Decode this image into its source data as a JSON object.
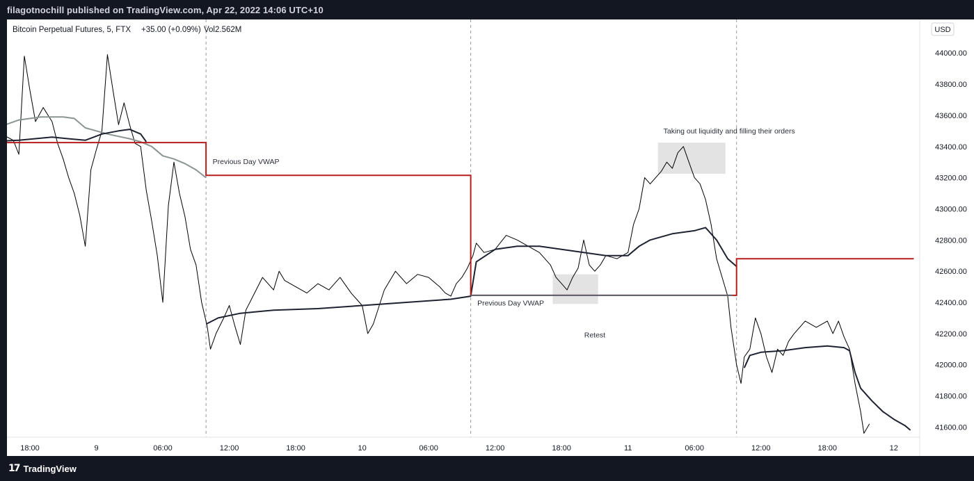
{
  "header": {
    "publish_line": "filagotnochill published on TradingView.com, Apr 22, 2022 14:06 UTC+10"
  },
  "legend": {
    "symbol": "Bitcoin Perpetual Futures, 5, FTX",
    "change": "+35.00 (+0.09%)",
    "volume": "Vol2.562M"
  },
  "currency_button": "USD",
  "footer": {
    "brand": "TradingView",
    "logo_icon": "tradingview-logo-icon"
  },
  "colors": {
    "price": "#000000",
    "vwap_grey": "#8a9593",
    "vwap_dark": "#1e2230",
    "prev_vwap": "#b71c1c",
    "box": "#d9d9d9"
  },
  "chart_data": {
    "type": "line",
    "title": "",
    "xlabel": "",
    "ylabel": "",
    "ylim": [
      41535,
      44215
    ],
    "y_ticks": [
      44000,
      43800,
      43600,
      43400,
      43200,
      43000,
      42800,
      42600,
      42400,
      42200,
      42000,
      41800,
      41600
    ],
    "y_tick_labels": [
      "44000.00",
      "43800.00",
      "43600.00",
      "43400.00",
      "43200.00",
      "43000.00",
      "42800.00",
      "42600.00",
      "42400.00",
      "42200.00",
      "42000.00",
      "41800.00",
      "41600.00"
    ],
    "x_ticks": [
      {
        "hour": 0,
        "label": "18:00"
      },
      {
        "hour": 6,
        "label": "9"
      },
      {
        "hour": 12,
        "label": "06:00"
      },
      {
        "hour": 18,
        "label": "12:00"
      },
      {
        "hour": 24,
        "label": "18:00"
      },
      {
        "hour": 30,
        "label": "10"
      },
      {
        "hour": 36,
        "label": "06:00"
      },
      {
        "hour": 42,
        "label": "12:00"
      },
      {
        "hour": 48,
        "label": "18:00"
      },
      {
        "hour": 54,
        "label": "11"
      },
      {
        "hour": 60,
        "label": "06:00"
      },
      {
        "hour": 66,
        "label": "12:00"
      },
      {
        "hour": 72,
        "label": "18:00"
      },
      {
        "hour": 78,
        "label": "12"
      }
    ],
    "session_breaks": [
      15.9,
      39.8,
      63.8
    ],
    "price_series": {
      "name": "",
      "points": [
        [
          -4.5,
          43420
        ],
        [
          -4,
          43620
        ],
        [
          -3,
          43530
        ],
        [
          -2.3,
          43470
        ],
        [
          -1.5,
          43440
        ],
        [
          -1,
          43350
        ],
        [
          -0.5,
          43980
        ],
        [
          0,
          43760
        ],
        [
          0.5,
          43560
        ],
        [
          1.2,
          43650
        ],
        [
          2,
          43560
        ],
        [
          2.5,
          43420
        ],
        [
          3,
          43320
        ],
        [
          3.5,
          43200
        ],
        [
          4,
          43100
        ],
        [
          4.5,
          42960
        ],
        [
          5,
          42760
        ],
        [
          5.5,
          43250
        ],
        [
          6,
          43380
        ],
        [
          6.5,
          43500
        ],
        [
          7,
          43990
        ],
        [
          7.5,
          43760
        ],
        [
          8,
          43540
        ],
        [
          8.5,
          43680
        ],
        [
          9,
          43540
        ],
        [
          9.5,
          43420
        ],
        [
          10,
          43400
        ],
        [
          10.5,
          43120
        ],
        [
          11,
          42920
        ],
        [
          11.5,
          42700
        ],
        [
          12,
          42400
        ],
        [
          12.5,
          43020
        ],
        [
          13,
          43300
        ],
        [
          13.5,
          43100
        ],
        [
          14,
          42950
        ],
        [
          14.5,
          42740
        ],
        [
          15,
          42640
        ],
        [
          15.5,
          42400
        ],
        [
          16,
          42250
        ],
        [
          16.3,
          42100
        ],
        [
          16.8,
          42200
        ],
        [
          17.5,
          42300
        ],
        [
          18,
          42380
        ],
        [
          18.5,
          42250
        ],
        [
          19,
          42130
        ],
        [
          19.5,
          42350
        ],
        [
          20,
          42420
        ],
        [
          21,
          42560
        ],
        [
          22,
          42480
        ],
        [
          22.5,
          42600
        ],
        [
          23,
          42540
        ],
        [
          24,
          42500
        ],
        [
          25,
          42460
        ],
        [
          26,
          42520
        ],
        [
          27,
          42480
        ],
        [
          28,
          42560
        ],
        [
          29,
          42460
        ],
        [
          29.5,
          42420
        ],
        [
          30,
          42380
        ],
        [
          30.5,
          42200
        ],
        [
          31,
          42260
        ],
        [
          32,
          42480
        ],
        [
          33,
          42600
        ],
        [
          34,
          42520
        ],
        [
          35,
          42580
        ],
        [
          36,
          42560
        ],
        [
          37,
          42500
        ],
        [
          37.5,
          42460
        ],
        [
          38,
          42440
        ],
        [
          38.5,
          42520
        ],
        [
          39,
          42560
        ],
        [
          39.5,
          42620
        ],
        [
          40,
          42700
        ],
        [
          40.3,
          42780
        ],
        [
          41,
          42720
        ],
        [
          42,
          42740
        ],
        [
          43,
          42830
        ],
        [
          44,
          42800
        ],
        [
          45,
          42760
        ],
        [
          46,
          42720
        ],
        [
          47,
          42640
        ],
        [
          47.5,
          42560
        ],
        [
          48,
          42520
        ],
        [
          48.5,
          42480
        ],
        [
          49,
          42560
        ],
        [
          49.5,
          42620
        ],
        [
          50,
          42800
        ],
        [
          50.5,
          42640
        ],
        [
          51,
          42600
        ],
        [
          51.5,
          42640
        ],
        [
          52,
          42700
        ],
        [
          53,
          42680
        ],
        [
          54,
          42720
        ],
        [
          54.5,
          42900
        ],
        [
          55,
          43000
        ],
        [
          55.5,
          43200
        ],
        [
          56,
          43160
        ],
        [
          57,
          43240
        ],
        [
          57.5,
          43300
        ],
        [
          58,
          43260
        ],
        [
          58.5,
          43360
        ],
        [
          59,
          43400
        ],
        [
          59.5,
          43300
        ],
        [
          60,
          43200
        ],
        [
          60.5,
          43160
        ],
        [
          61,
          43060
        ],
        [
          61.5,
          42900
        ],
        [
          62,
          42680
        ],
        [
          62.5,
          42560
        ],
        [
          63,
          42440
        ],
        [
          63.3,
          42240
        ],
        [
          63.8,
          42000
        ],
        [
          64.2,
          41880
        ],
        [
          64.5,
          42050
        ],
        [
          65,
          42100
        ],
        [
          65.5,
          42300
        ],
        [
          66,
          42200
        ],
        [
          66.5,
          42050
        ],
        [
          67,
          41950
        ],
        [
          67.5,
          42100
        ],
        [
          68,
          42060
        ],
        [
          68.5,
          42150
        ],
        [
          69,
          42200
        ],
        [
          70,
          42280
        ],
        [
          71,
          42240
        ],
        [
          72,
          42280
        ],
        [
          72.5,
          42200
        ],
        [
          73,
          42280
        ],
        [
          73.5,
          42180
        ],
        [
          74,
          42100
        ],
        [
          74.5,
          41880
        ],
        [
          75,
          41700
        ],
        [
          75.3,
          41560
        ],
        [
          75.8,
          41620
        ]
      ]
    },
    "vwap_grey_series": {
      "name": "",
      "points": [
        [
          -4.5,
          43460
        ],
        [
          -3,
          43520
        ],
        [
          -1,
          43570
        ],
        [
          1,
          43590
        ],
        [
          3,
          43590
        ],
        [
          4,
          43580
        ],
        [
          5,
          43520
        ],
        [
          7,
          43480
        ],
        [
          9,
          43450
        ],
        [
          10,
          43430
        ],
        [
          11,
          43400
        ],
        [
          12,
          43340
        ],
        [
          13,
          43320
        ],
        [
          14,
          43290
        ],
        [
          15,
          43250
        ],
        [
          15.9,
          43200
        ]
      ]
    },
    "vwap_dark_series": {
      "name": "",
      "points": [
        [
          -4.5,
          43430
        ],
        [
          -1,
          43440
        ],
        [
          2,
          43460
        ],
        [
          3.5,
          43450
        ],
        [
          5,
          43440
        ],
        [
          6.5,
          43480
        ],
        [
          8,
          43500
        ],
        [
          9,
          43510
        ],
        [
          10,
          43480
        ],
        [
          10.5,
          43430
        ],
        [
          15.9,
          42260
        ],
        [
          17,
          42300
        ],
        [
          19,
          42330
        ],
        [
          22,
          42350
        ],
        [
          26,
          42360
        ],
        [
          30,
          42380
        ],
        [
          34,
          42400
        ],
        [
          38,
          42420
        ],
        [
          39.8,
          42440
        ],
        [
          40.3,
          42660
        ],
        [
          42,
          42740
        ],
        [
          44,
          42760
        ],
        [
          46,
          42760
        ],
        [
          48,
          42740
        ],
        [
          50,
          42720
        ],
        [
          52,
          42700
        ],
        [
          54,
          42700
        ],
        [
          55,
          42760
        ],
        [
          56,
          42800
        ],
        [
          57,
          42820
        ],
        [
          58,
          42840
        ],
        [
          60,
          42860
        ],
        [
          61,
          42880
        ],
        [
          62,
          42800
        ],
        [
          63,
          42680
        ],
        [
          63.8,
          42630
        ],
        [
          64.5,
          41980
        ],
        [
          65,
          42060
        ],
        [
          66,
          42080
        ],
        [
          68,
          42090
        ],
        [
          70,
          42110
        ],
        [
          72,
          42120
        ],
        [
          73.5,
          42110
        ],
        [
          74,
          42090
        ],
        [
          74.5,
          41950
        ],
        [
          75,
          41850
        ],
        [
          76,
          41770
        ],
        [
          77,
          41700
        ],
        [
          78,
          41650
        ],
        [
          79,
          41610
        ],
        [
          79.5,
          41580
        ]
      ]
    },
    "prev_day_vwap": {
      "name": "",
      "segments": [
        {
          "from": -4.5,
          "to": 15.9,
          "value": 43425
        },
        {
          "from": 15.9,
          "to": 39.8,
          "value": 43215
        },
        {
          "from": 39.8,
          "to": 63.8,
          "value": 42445
        },
        {
          "from": 63.8,
          "to": 79.8,
          "value": 42680
        }
      ]
    },
    "annotations": [
      {
        "text": "Previous Day VWAP",
        "hour": 16.5,
        "price": 43288
      },
      {
        "text": "Previous Day VWAP",
        "hour": 40.4,
        "price": 42380
      },
      {
        "text": "Retest",
        "hour": 51.0,
        "price": 42175
      },
      {
        "text": "Taking out liquidity and filling their orders",
        "hour": 57.2,
        "price": 43483
      }
    ],
    "highlight_boxes": [
      {
        "label": "retest-zone",
        "hour_from": 47.2,
        "hour_to": 51.3,
        "price_from": 42390,
        "price_to": 42580
      },
      {
        "label": "liquidity-zone",
        "hour_from": 56.7,
        "hour_to": 62.8,
        "price_from": 43225,
        "price_to": 43425
      }
    ]
  }
}
